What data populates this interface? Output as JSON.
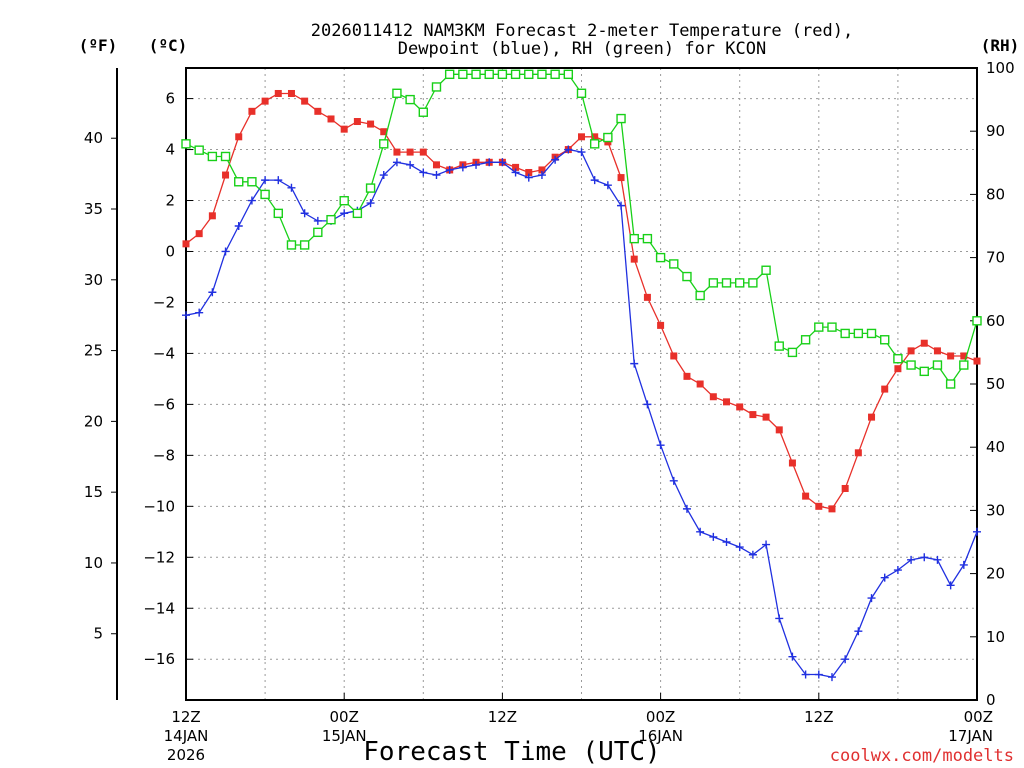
{
  "chart_data": {
    "type": "line",
    "title_line1": "2026011412 NAM3KM Forecast 2-meter Temperature (red),",
    "title_line2": "Dewpoint (blue), RH (green) for KCON",
    "xlabel": "Forecast Time (UTC)",
    "credit": "coolwx.com/modelts",
    "units": {
      "fahrenheit": "(ºF)",
      "celsius": "(ºC)",
      "rh": "(RH)"
    },
    "x_ticks": [
      {
        "hour": 0,
        "label1": "12Z",
        "label2": "14JAN",
        "label3": "2026"
      },
      {
        "hour": 12,
        "label1": "00Z",
        "label2": "15JAN",
        "label3": ""
      },
      {
        "hour": 24,
        "label1": "12Z",
        "label2": "",
        "label3": ""
      },
      {
        "hour": 36,
        "label1": "00Z",
        "label2": "16JAN",
        "label3": ""
      },
      {
        "hour": 48,
        "label1": "12Z",
        "label2": "",
        "label3": ""
      },
      {
        "hour": 60,
        "label1": "00Z",
        "label2": "17JAN",
        "label3": ""
      }
    ],
    "xlim": [
      0,
      60
    ],
    "ylim_c": [
      -17.6,
      7.2
    ],
    "ylim_rh": [
      0,
      100
    ],
    "celsius_ticks": [
      6,
      4,
      2,
      0,
      -2,
      -4,
      -6,
      -8,
      -10,
      -12,
      -14,
      -16
    ],
    "fahrenheit_ticks": [
      40,
      35,
      30,
      25,
      20,
      15,
      10,
      5
    ],
    "rh_ticks": [
      100,
      90,
      80,
      70,
      60,
      50,
      40,
      30,
      20,
      10,
      0
    ],
    "hours": [
      0,
      1,
      2,
      3,
      4,
      5,
      6,
      7,
      8,
      9,
      10,
      11,
      12,
      13,
      14,
      15,
      16,
      17,
      18,
      19,
      20,
      21,
      22,
      23,
      24,
      25,
      26,
      27,
      28,
      29,
      30,
      31,
      32,
      33,
      34,
      35,
      36,
      37,
      38,
      39,
      40,
      41,
      42,
      43,
      44,
      45,
      46,
      47,
      48,
      49,
      50,
      51,
      52,
      53,
      54,
      55,
      56,
      57,
      58,
      59,
      60
    ],
    "series": [
      {
        "name": "Temperature",
        "unit": "C",
        "color": "#e8302a",
        "marker": "square-filled",
        "values": [
          0.3,
          0.7,
          1.4,
          3.0,
          4.5,
          5.5,
          5.9,
          6.2,
          6.2,
          5.9,
          5.5,
          5.2,
          4.8,
          5.1,
          5.0,
          4.7,
          3.9,
          3.9,
          3.9,
          3.4,
          3.2,
          3.4,
          3.5,
          3.5,
          3.5,
          3.3,
          3.1,
          3.2,
          3.7,
          4.0,
          4.5,
          4.5,
          4.3,
          2.9,
          -0.3,
          -1.8,
          -2.9,
          -4.1,
          -4.9,
          -5.2,
          -5.7,
          -5.9,
          -6.1,
          -6.4,
          -6.5,
          -7.0,
          -8.3,
          -9.6,
          -10.0,
          -10.1,
          -9.3,
          -7.9,
          -6.5,
          -5.4,
          -4.6,
          -3.9,
          -3.6,
          -3.9,
          -4.1,
          -4.1,
          -4.3
        ]
      },
      {
        "name": "Dewpoint",
        "unit": "C",
        "color": "#2030e0",
        "marker": "plus",
        "values": [
          -2.5,
          -2.4,
          -1.6,
          0.0,
          1.0,
          2.0,
          2.8,
          2.8,
          2.5,
          1.5,
          1.2,
          1.2,
          1.5,
          1.6,
          1.9,
          3.0,
          3.5,
          3.4,
          3.1,
          3.0,
          3.2,
          3.3,
          3.4,
          3.5,
          3.5,
          3.1,
          2.9,
          3.0,
          3.6,
          4.0,
          3.9,
          2.8,
          2.6,
          1.8,
          -4.4,
          -6.0,
          -7.6,
          -9.0,
          -10.1,
          -11.0,
          -11.2,
          -11.4,
          -11.6,
          -11.9,
          -11.5,
          -14.4,
          -15.9,
          -16.6,
          -16.6,
          -16.7,
          -16.0,
          -14.9,
          -13.6,
          -12.8,
          -12.5,
          -12.1,
          -12.0,
          -12.1,
          -13.1,
          -12.3,
          -11.0
        ]
      },
      {
        "name": "RH",
        "unit": "%",
        "color": "#18d018",
        "marker": "square-open",
        "values": [
          88,
          87,
          86,
          86,
          82,
          82,
          80,
          77,
          72,
          72,
          74,
          76,
          79,
          77,
          81,
          88,
          96,
          95,
          93,
          97,
          99,
          99,
          99,
          99,
          99,
          99,
          99,
          99,
          99,
          99,
          96,
          88,
          89,
          92,
          73,
          73,
          70,
          69,
          67,
          64,
          66,
          66,
          66,
          66,
          68,
          56,
          55,
          57,
          59,
          59,
          58,
          58,
          58,
          57,
          54,
          53,
          52,
          53,
          50,
          53,
          60
        ]
      }
    ]
  }
}
